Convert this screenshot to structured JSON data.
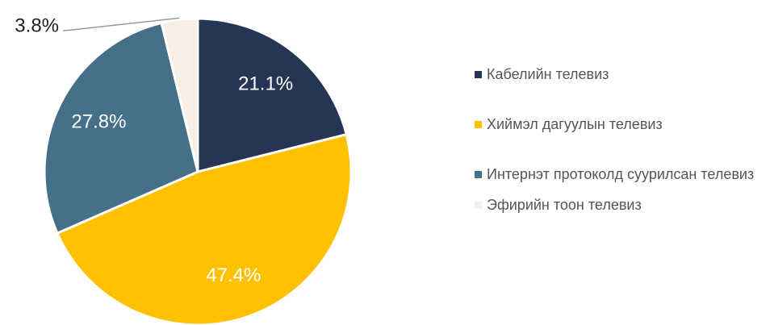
{
  "chart_data": {
    "type": "pie",
    "categories": [
      "Кабелийн телевиз",
      "Хиймэл дагуулын телевиз",
      "Интернэт протоколд суурилсан телевиз",
      "Эфирийн тоон телевиз"
    ],
    "values": [
      21.1,
      47.4,
      27.8,
      3.8
    ],
    "value_labels": [
      "21.1%",
      "47.4%",
      "27.8%",
      "3.8%"
    ],
    "colors": [
      "#263554",
      "#ffc000",
      "#44708a",
      "#f5efe6"
    ],
    "legend": "right"
  }
}
